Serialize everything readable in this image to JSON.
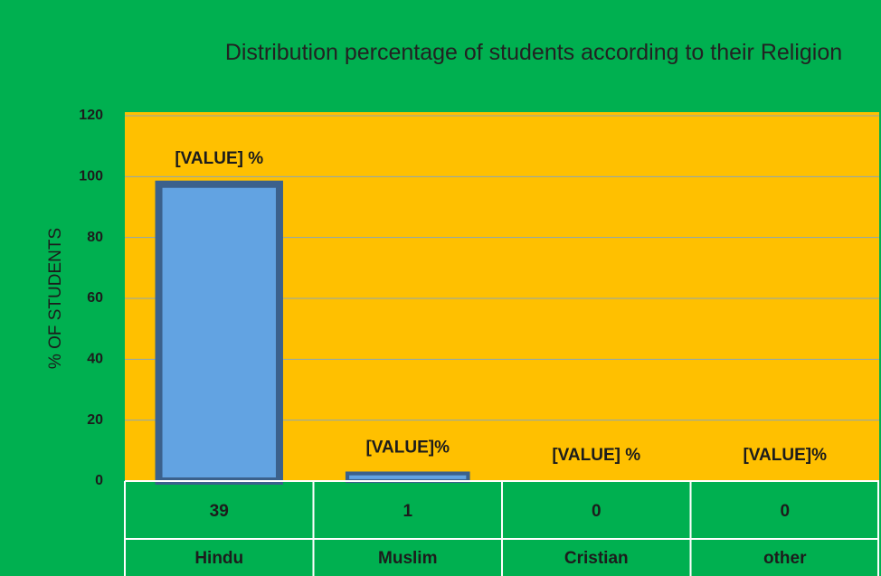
{
  "chart_data": {
    "type": "bar",
    "title": "Distribution percentage of students according to their Religion",
    "y_label": "% OF STUDENTS",
    "categories": [
      "Hindu",
      "Muslim",
      "Cristian",
      "other"
    ],
    "values": [
      97.5,
      2.5,
      0,
      0
    ],
    "data_labels": [
      "[VALUE] %",
      "[VALUE]%",
      "[VALUE] %",
      "[VALUE]%"
    ],
    "table_values": [
      39,
      1,
      0,
      0
    ],
    "color": "#62a3e2",
    "ylim": [
      0,
      120
    ],
    "yticks": [
      0,
      20,
      40,
      60,
      80,
      100,
      120
    ],
    "grid": true
  }
}
